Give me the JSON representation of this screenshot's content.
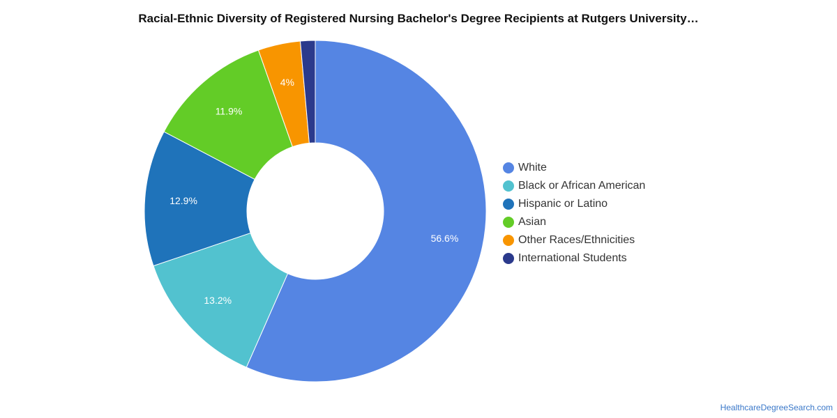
{
  "chart_data": {
    "type": "pie",
    "variant": "donut",
    "title": "Racial-Ethnic Diversity of Registered Nursing Bachelor's Degree Recipients at Rutgers University…",
    "categories": [
      "White",
      "Black or African American",
      "Hispanic or Latino",
      "Asian",
      "Other Races/Ethnicities",
      "International Students"
    ],
    "values": [
      56.6,
      13.2,
      12.9,
      11.9,
      4.0,
      1.4
    ],
    "data_labels": [
      "56.6%",
      "13.2%",
      "12.9%",
      "11.9%",
      "4%",
      ""
    ],
    "colors": [
      "#5585e3",
      "#52c2cf",
      "#1f73ba",
      "#63cc27",
      "#f89500",
      "#2b3a8c"
    ],
    "legend_position": "right",
    "start_angle_deg": 0,
    "direction": "clockwise"
  },
  "source": {
    "label": "HealthcareDegreeSearch.com"
  }
}
